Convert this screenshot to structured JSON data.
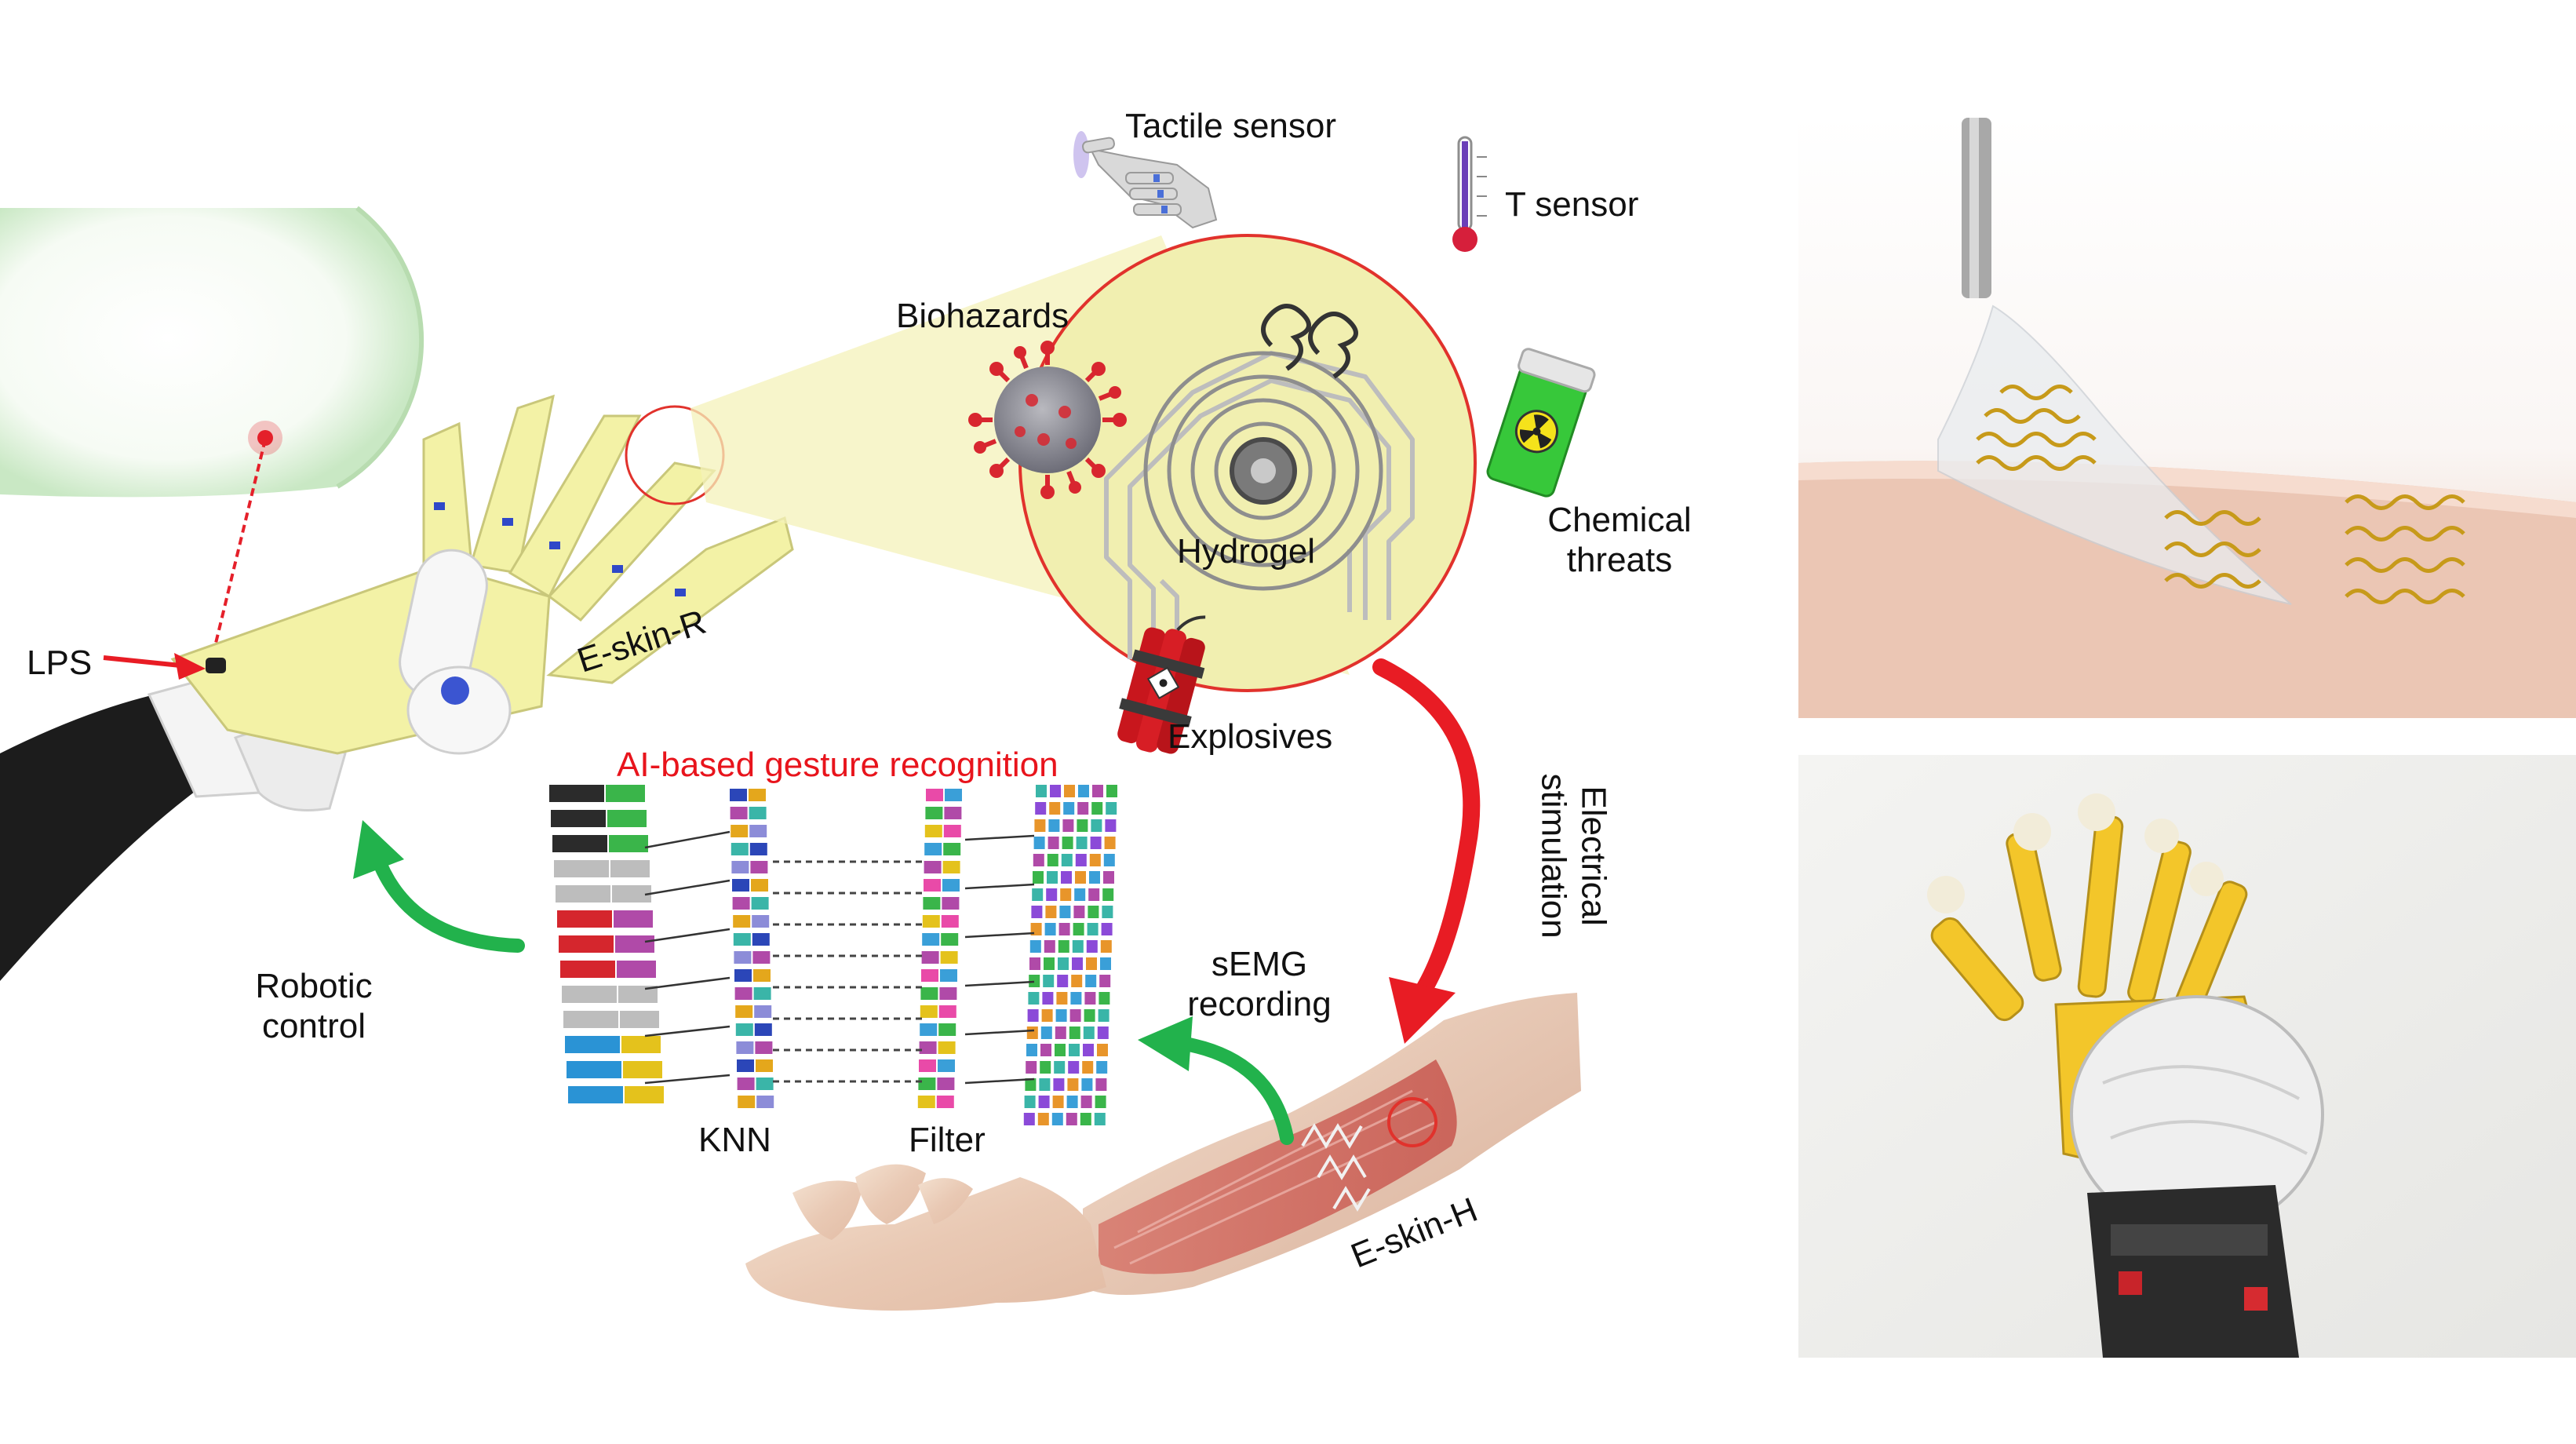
{
  "labels": {
    "tactile_sensor": "Tactile sensor",
    "t_sensor": "T sensor",
    "biohazards": "Biohazards",
    "hydrogel": "Hydrogel",
    "chemical_threats_line1": "Chemical",
    "chemical_threats_line2": "threats",
    "explosives": "Explosives",
    "lps": "LPS",
    "e_skin_r": "E-skin-R",
    "ai_gesture": "AI-based gesture recognition",
    "electrical_line1": "Electrical",
    "electrical_line2": "stimulation",
    "semg_line1": "sEMG",
    "semg_line2": "recording",
    "robotic_line1": "Robotic",
    "robotic_line2": "control",
    "knn": "KNN",
    "filter": "Filter",
    "e_skin_h": "E-skin-H"
  },
  "colors": {
    "ai_title": "#e8141c",
    "red_arrow": "#e81c24",
    "green_arrow": "#22b24c",
    "e_skin_yellow": "#f3f2a6",
    "zoom_circle_fill": "#f1efb0",
    "zoom_circle_stroke": "#e1322c"
  },
  "icons": {
    "biohazard": "virus-icon",
    "chemical": "radioactive-canister-icon",
    "explosive": "dynamite-icon",
    "thermometer": "thermometer-icon",
    "tactile": "robot-hand-icon"
  }
}
